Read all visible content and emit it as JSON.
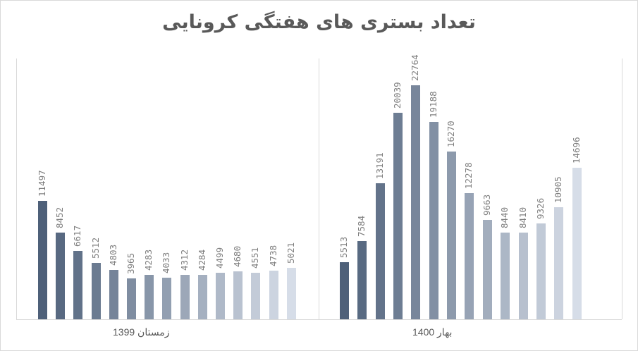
{
  "title": "تعداد بستری های  هفتگی کرونایی",
  "groups": [
    {
      "label": "زمستان 1399"
    },
    {
      "label": "بهار 1400"
    }
  ],
  "colors": {
    "gradient_start": "#4e6079",
    "gradient_end": "#d6dde8",
    "label_text": "#7f7f7f",
    "axis": "#d9d9d9",
    "title": "#595959"
  },
  "chart_data": {
    "type": "bar",
    "title": "تعداد بستری های  هفتگی کرونایی",
    "xlabel": "",
    "ylabel": "",
    "ylim": [
      0,
      25000
    ],
    "grid": false,
    "legend": "none",
    "data_labels": "rotated vertical above bars",
    "categories": [
      "زمستان 1399",
      "بهار 1400"
    ],
    "series": [
      {
        "name": "زمستان 1399",
        "values": [
          11497,
          8452,
          6617,
          5512,
          4803,
          3965,
          4283,
          4033,
          4312,
          4284,
          4499,
          4680,
          4551,
          4738,
          5021
        ]
      },
      {
        "name": "بهار 1400",
        "values": [
          5513,
          7584,
          13191,
          20039,
          22764,
          19188,
          16270,
          12278,
          9663,
          8440,
          8410,
          9326,
          10905,
          14696
        ]
      }
    ]
  }
}
